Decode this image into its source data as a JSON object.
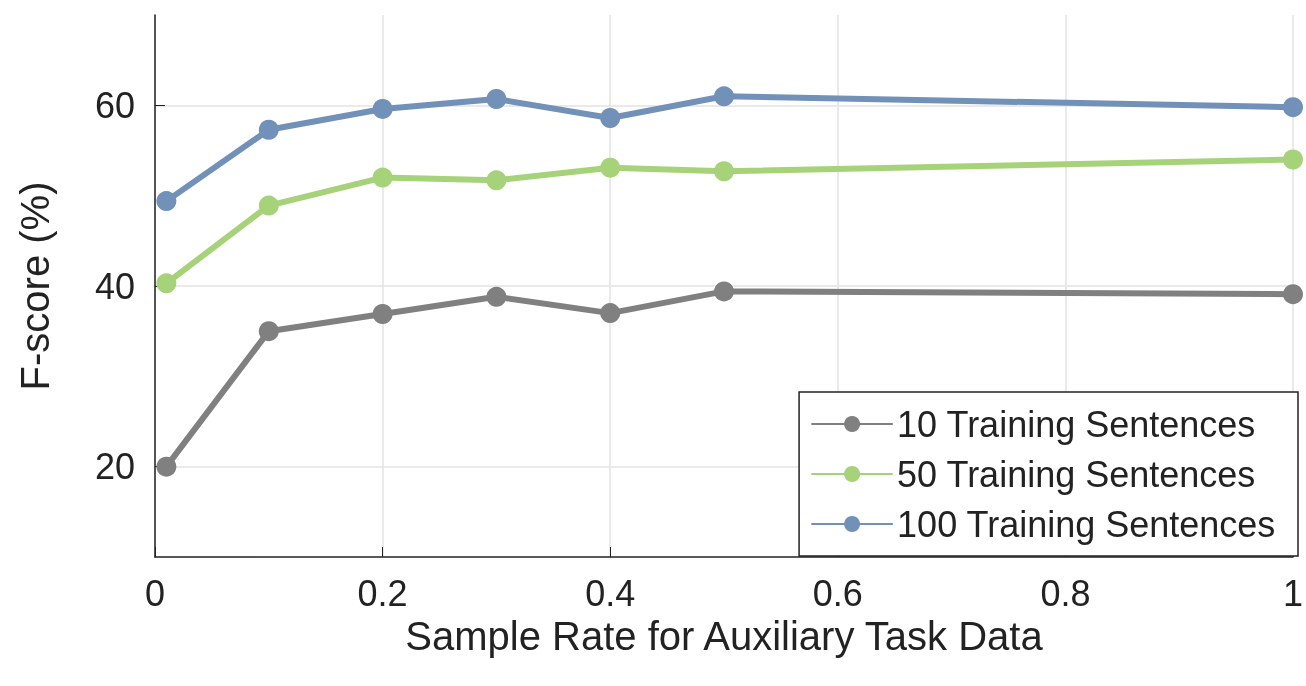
{
  "chart_data": {
    "type": "line",
    "xlabel": "Sample Rate for Auxiliary Task Data",
    "ylabel": "F-score (%)",
    "x": [
      0.01,
      0.1,
      0.2,
      0.3,
      0.4,
      0.5,
      1
    ],
    "series": [
      {
        "name": "10 Training Sentences",
        "color": "#808080",
        "values": [
          20,
          35,
          36.9,
          38.8,
          37,
          39.4,
          39.1
        ]
      },
      {
        "name": "50 Training Sentences",
        "color": "#a6d37a",
        "values": [
          40.3,
          48.9,
          52,
          51.7,
          53.1,
          52.7,
          54
        ]
      },
      {
        "name": "100 Training Sentences",
        "color": "#7291b8",
        "values": [
          49.4,
          57.3,
          59.6,
          60.7,
          58.6,
          61,
          59.8
        ]
      }
    ],
    "xlim": [
      0,
      1
    ],
    "xticks": [
      0,
      0.2,
      0.4,
      0.6,
      0.8,
      1
    ],
    "ylim": [
      10,
      70
    ],
    "yticks": [
      20,
      40,
      60
    ],
    "grid": true,
    "legend": "bottom right",
    "marker": "circle",
    "line_style": "solid"
  }
}
